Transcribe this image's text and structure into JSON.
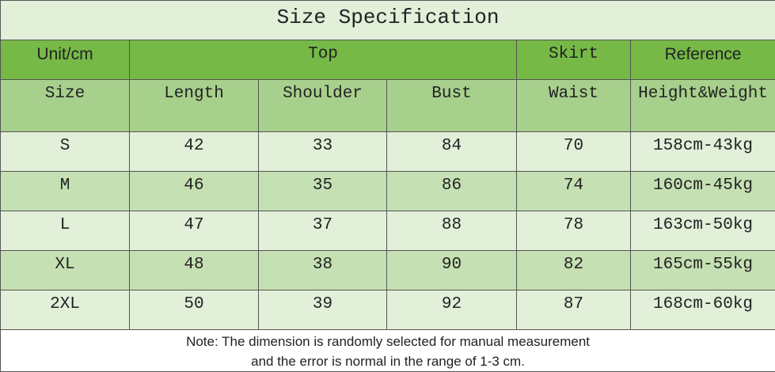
{
  "title": "Size Specification",
  "header_groups": [
    "Unit/cm",
    "Top",
    "Skirt",
    "Reference"
  ],
  "columns": [
    "Size",
    "Length",
    "Shoulder",
    "Bust",
    "Waist",
    "Height&Weight"
  ],
  "rows": [
    [
      "S",
      42,
      33,
      84,
      70,
      "158cm-43kg"
    ],
    [
      "M",
      46,
      35,
      86,
      74,
      "160cm-45kg"
    ],
    [
      "L",
      47,
      37,
      88,
      78,
      "163cm-50kg"
    ],
    [
      "XL",
      48,
      38,
      90,
      82,
      "165cm-55kg"
    ],
    [
      "2XL",
      50,
      39,
      92,
      87,
      "168cm-60kg"
    ]
  ],
  "note": [
    "Note: The dimension is randomly selected for manual measurement",
    "and the error is normal in the range of 1-3 cm."
  ]
}
